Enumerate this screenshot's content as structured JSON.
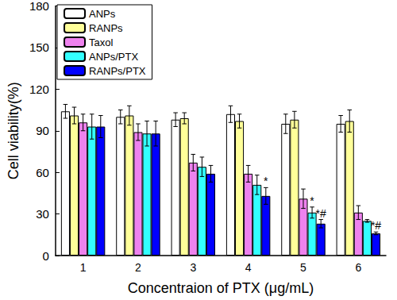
{
  "chart_data": {
    "type": "bar",
    "x_label": "Concentraion of PTX (μg/mL)",
    "y_label": "Cell viability(%)",
    "categories": [
      "1",
      "2",
      "3",
      "4",
      "5",
      "6"
    ],
    "ylim": [
      0,
      180
    ],
    "yticks": [
      0,
      30,
      60,
      90,
      120,
      150,
      180
    ],
    "grid": false,
    "legend": "top-left",
    "series": [
      {
        "name": "ANPs",
        "color": "#ffffff",
        "values": [
          104,
          100,
          98,
          102,
          95,
          95
        ],
        "errors": [
          5,
          5,
          5,
          6,
          7,
          6
        ]
      },
      {
        "name": "RANPs",
        "color": "#ffff99",
        "values": [
          101,
          101,
          99,
          97,
          98,
          97
        ],
        "errors": [
          6,
          7,
          4,
          5,
          6,
          8
        ]
      },
      {
        "name": "Taxol",
        "color": "#ee82ee",
        "values": [
          96,
          89,
          67,
          59,
          41,
          31
        ],
        "errors": [
          6,
          6,
          6,
          6,
          7,
          5
        ]
      },
      {
        "name": "ANPs/PTX",
        "color": "#33ffff",
        "values": [
          93,
          88,
          64,
          51,
          31,
          25
        ],
        "errors": [
          9,
          9,
          7,
          7,
          4,
          1
        ],
        "annotations": [
          null,
          null,
          null,
          null,
          "*",
          null
        ]
      },
      {
        "name": "RANPs/PTX",
        "color": "#0000ff",
        "values": [
          93,
          88,
          59,
          43,
          23,
          16
        ],
        "errors": [
          8,
          9,
          6,
          6,
          3,
          1
        ],
        "annotations": [
          null,
          null,
          null,
          "*",
          "*#",
          "*#"
        ]
      }
    ]
  }
}
